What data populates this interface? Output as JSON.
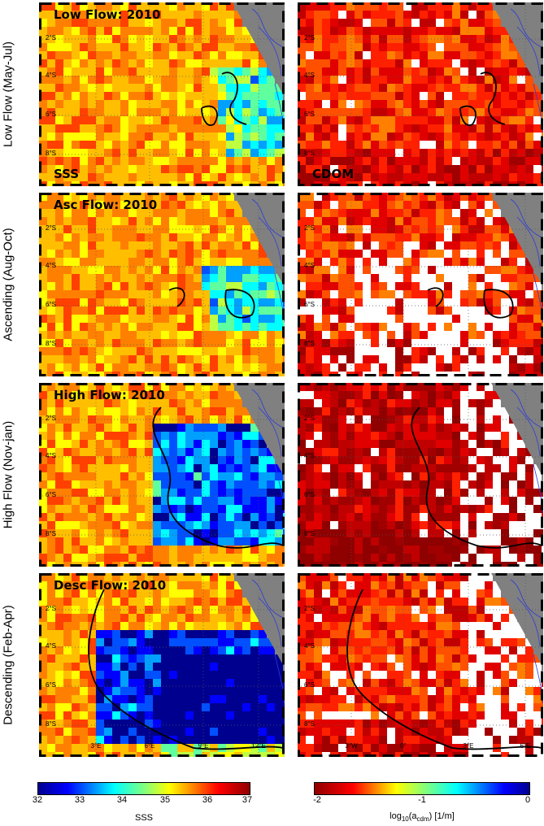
{
  "rows": [
    {
      "label": "Low Flow (May-Jul)",
      "sss_title": "Low Flow: 2010",
      "show_corner": true
    },
    {
      "label": "Ascending (Aug-Oct)",
      "sss_title": "Asc Flow: 2010",
      "show_corner": false
    },
    {
      "label": "High Flow (Nov-jan)",
      "sss_title": "High Flow: 2010",
      "show_corner": false
    },
    {
      "label": "Descending (Feb-Apr)",
      "sss_title": "Desc Flow: 2010",
      "show_corner": false
    }
  ],
  "corner_labels": {
    "sss": "SSS",
    "cdom": "CDOM"
  },
  "lat_ticks": [
    "2°S",
    "4°S",
    "6°S",
    "8°S"
  ],
  "sss_lon_ticks": [
    "3°E",
    "6°E",
    "9°E",
    "12°E"
  ],
  "cdom_lon_ticks": [
    "3°W",
    "0°",
    "3°E",
    "6°E"
  ],
  "sss_colorbar": {
    "ticks": [
      "32",
      "33",
      "34",
      "35",
      "36",
      "37"
    ],
    "label": "SSS"
  },
  "cdom_colorbar": {
    "ticks": [
      "-2",
      "-1",
      "0"
    ],
    "label_main": "log",
    "label_sub": "10",
    "label_mid": "(a",
    "label_sub2": "cdm",
    "label_end": ") [1/m]"
  },
  "colors": {
    "land": "#808080",
    "contour": "#000000",
    "white_gap": "#ffffff"
  }
}
